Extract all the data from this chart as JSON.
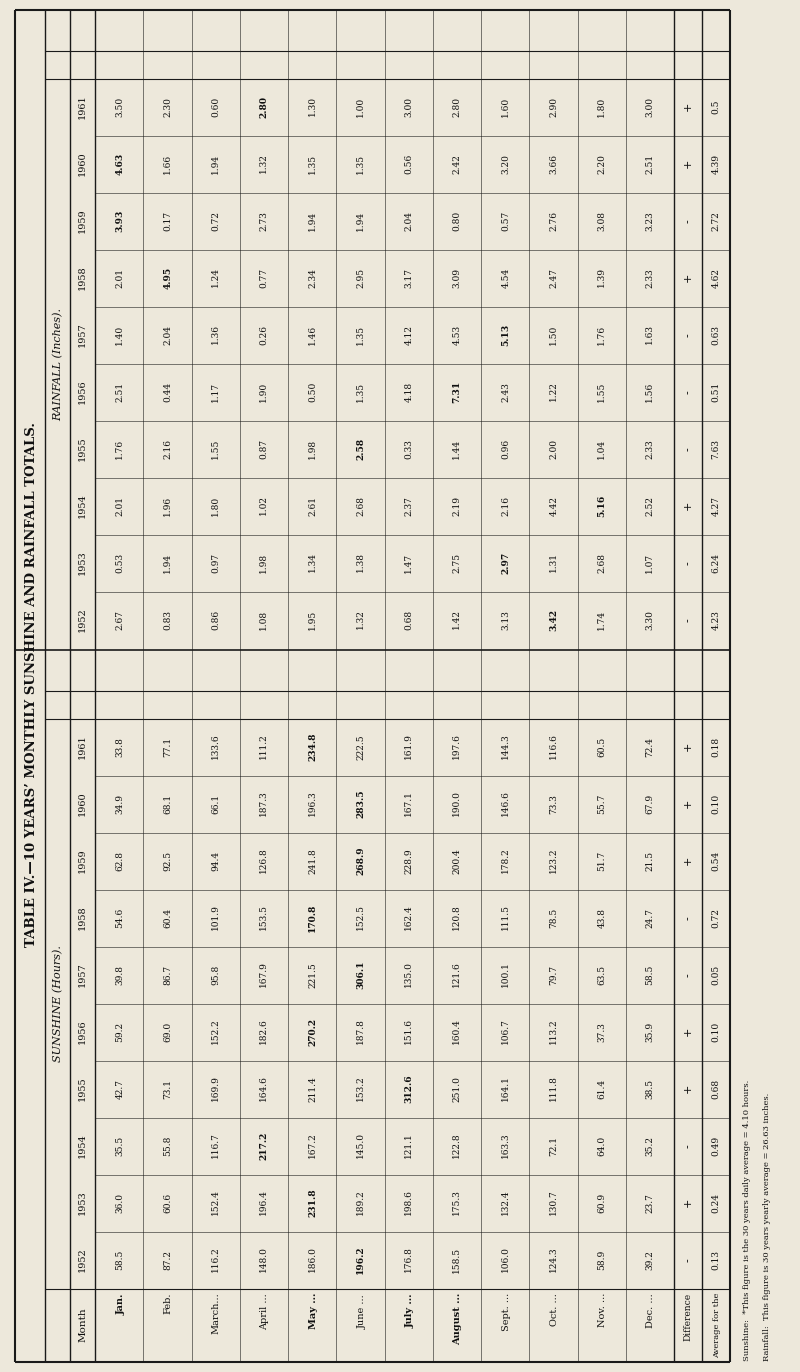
{
  "title": "TABLE IV.—10 YEARS’ MONTHLY SUNSHINE AND RAINFALL TOTALS.",
  "sunshine_label": "SUNSHINE (Hours).",
  "rainfall_label": "RAINFALL (Inches).",
  "months": [
    "Jan.",
    "Feb.",
    "March...",
    "April ...",
    "May ...",
    "June ...",
    "July ...",
    "August ...",
    "Sept. ...",
    "Oct. ...",
    "Nov. ...",
    "Dec. ..."
  ],
  "months_short": [
    "Jan.",
    "Feb.",
    "March...",
    "April ...",
    "May ...",
    "June ...",
    "July ...",
    "August ...",
    "Sept. ...",
    "Oct. ...",
    "Nov. ...",
    "Dec. ..."
  ],
  "sunshine_years": [
    "1952",
    "1953",
    "1954",
    "1955",
    "1956",
    "1957",
    "1958",
    "1959",
    "1960",
    "1961"
  ],
  "rainfall_years": [
    "1952",
    "1953",
    "1954",
    "1955",
    "1956",
    "1957",
    "1958",
    "1959",
    "1960",
    "1961"
  ],
  "sunshine_data": {
    "1952": [
      58.5,
      87.2,
      116.2,
      148.0,
      186.0,
      196.2,
      176.8,
      158.5,
      106.0,
      124.3,
      58.9,
      39.2
    ],
    "1953": [
      36.0,
      60.6,
      152.4,
      196.4,
      231.8,
      189.2,
      198.6,
      175.3,
      132.4,
      130.7,
      60.9,
      23.7
    ],
    "1954": [
      35.5,
      55.8,
      116.7,
      217.2,
      167.2,
      145.0,
      121.1,
      122.8,
      163.3,
      72.1,
      64.0,
      35.2
    ],
    "1955": [
      42.7,
      73.1,
      169.9,
      164.6,
      211.4,
      153.2,
      312.6,
      251.0,
      164.1,
      111.8,
      61.4,
      38.5
    ],
    "1956": [
      59.2,
      69.0,
      152.2,
      182.6,
      270.2,
      187.8,
      151.6,
      160.4,
      106.7,
      113.2,
      37.3,
      35.9
    ],
    "1957": [
      39.8,
      86.7,
      95.8,
      167.9,
      221.5,
      306.1,
      135.0,
      121.6,
      100.1,
      79.7,
      63.5,
      58.5
    ],
    "1958": [
      54.6,
      60.4,
      101.9,
      153.5,
      170.8,
      152.5,
      162.4,
      120.8,
      111.5,
      78.5,
      43.8,
      24.7
    ],
    "1959": [
      62.8,
      92.5,
      94.4,
      126.8,
      241.8,
      268.9,
      228.9,
      200.4,
      178.2,
      123.2,
      51.7,
      21.5
    ],
    "1960": [
      34.9,
      68.1,
      66.1,
      187.3,
      196.3,
      283.5,
      167.1,
      190.0,
      146.6,
      73.3,
      55.7,
      67.9
    ],
    "1961": [
      33.8,
      77.1,
      133.6,
      111.2,
      234.8,
      222.5,
      161.9,
      197.6,
      144.3,
      116.6,
      60.5,
      72.4
    ]
  },
  "sunshine_bold": {
    "1952": [
      5
    ],
    "1953": [
      4
    ],
    "1954": [
      3
    ],
    "1955": [
      6
    ],
    "1956": [
      4
    ],
    "1957": [
      5
    ],
    "1958": [
      4
    ],
    "1959": [
      5
    ],
    "1960": [
      5
    ],
    "1961": [
      4
    ]
  },
  "sunshine_diff": [
    "-",
    "+",
    "-",
    "+",
    "+",
    "-",
    "-",
    "+",
    "+",
    "+"
  ],
  "sunshine_diff_val": [
    "0.13",
    "0.24",
    "0.49",
    "0.68",
    "0.10",
    "0.05",
    "0.72",
    "0.54",
    "0.10",
    "0.18"
  ],
  "rainfall_data": {
    "1952": [
      2.67,
      0.83,
      0.86,
      1.08,
      1.95,
      1.32,
      0.68,
      1.42,
      3.13,
      3.42,
      1.74,
      3.3
    ],
    "1953": [
      0.53,
      1.94,
      0.97,
      1.98,
      1.34,
      1.38,
      1.47,
      2.75,
      2.97,
      1.31,
      2.68,
      1.07
    ],
    "1954": [
      2.01,
      1.96,
      1.8,
      1.02,
      2.61,
      2.68,
      2.37,
      2.19,
      2.16,
      4.42,
      5.16,
      2.52
    ],
    "1955": [
      1.76,
      2.16,
      1.55,
      0.87,
      1.98,
      2.58,
      0.33,
      1.44,
      0.96,
      2.0,
      1.04,
      2.33
    ],
    "1956": [
      2.51,
      0.44,
      1.17,
      1.9,
      0.5,
      1.35,
      4.18,
      7.31,
      2.43,
      1.22,
      1.55,
      1.56
    ],
    "1957": [
      1.4,
      2.04,
      1.36,
      0.26,
      1.46,
      1.35,
      4.12,
      4.53,
      5.13,
      1.5,
      1.76,
      1.63
    ],
    "1958": [
      2.01,
      4.95,
      1.24,
      0.77,
      2.34,
      2.95,
      3.17,
      3.09,
      4.54,
      2.47,
      1.39,
      2.33
    ],
    "1959": [
      3.93,
      0.17,
      0.72,
      2.73,
      1.94,
      1.94,
      2.04,
      0.8,
      0.57,
      2.76,
      3.08,
      3.23
    ],
    "1960": [
      4.63,
      1.66,
      1.94,
      1.32,
      1.35,
      1.35,
      0.56,
      2.42,
      3.2,
      3.66,
      2.2,
      2.51
    ],
    "1961": [
      3.5,
      2.3,
      0.6,
      2.8,
      1.3,
      1.0,
      3.0,
      2.8,
      1.6,
      2.9,
      1.8,
      3.0
    ]
  },
  "rainfall_bold": {
    "1952": [
      9
    ],
    "1953": [
      8
    ],
    "1954": [
      10
    ],
    "1955": [
      5
    ],
    "1956": [
      7
    ],
    "1957": [
      8
    ],
    "1958": [
      1
    ],
    "1959": [
      0
    ],
    "1960": [
      0
    ],
    "1961": [
      3
    ]
  },
  "rainfall_diff": [
    "-",
    "-",
    "+",
    "-",
    "-",
    "-",
    "+",
    "-",
    "+",
    "+"
  ],
  "rainfall_diff_val": [
    "4.23",
    "6.24",
    "4.27",
    "7.63",
    "0.51",
    "0.63",
    "4.62",
    "2.72",
    "4.39",
    "0.5"
  ],
  "sunshine_note": "Sunshine:  *This figure is the 30 years daily average = 4.10 hours.",
  "rainfall_note": "Rainfall:  This figure is 30 years yearly average = 26.63 inches.",
  "bg_color": "#ede8db",
  "line_color": "#1a1a1a",
  "text_color": "#111111"
}
